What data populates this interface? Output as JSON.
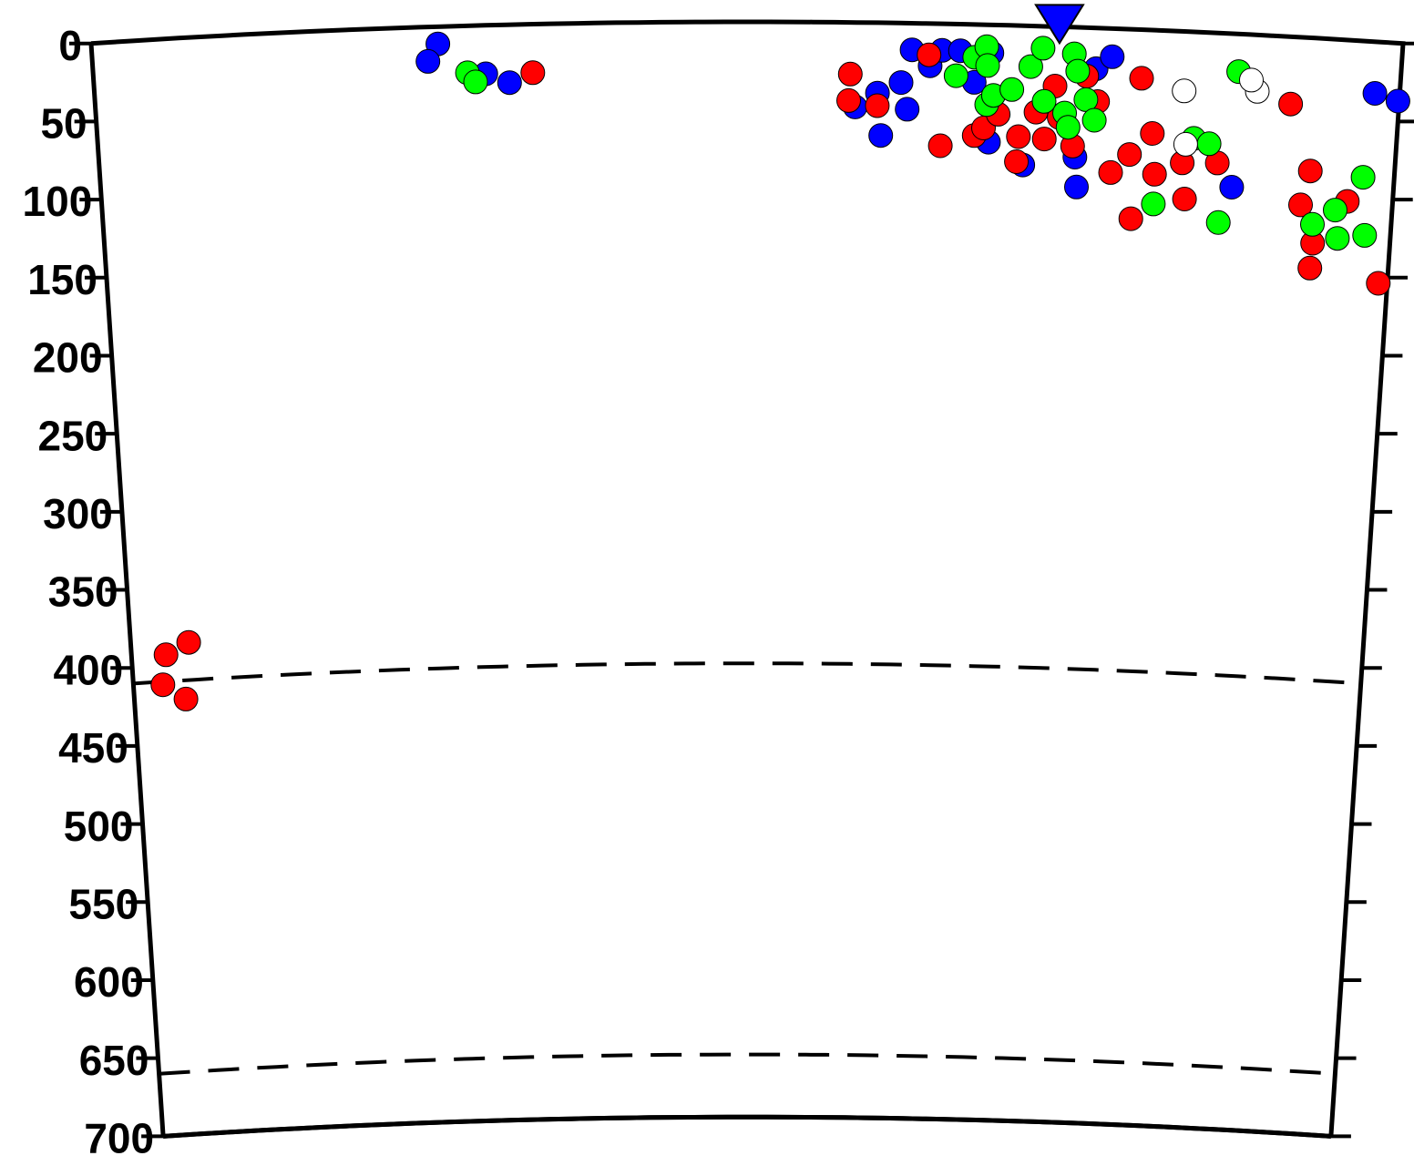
{
  "chart_data": {
    "type": "scatter",
    "xlim": [
      0,
      100
    ],
    "ylim": [
      0,
      700
    ],
    "yticks": [
      0,
      50,
      100,
      150,
      200,
      250,
      300,
      350,
      400,
      450,
      500,
      550,
      600,
      650,
      700
    ],
    "reference_depths": [
      410,
      660
    ],
    "station_x": 73.8,
    "series": [
      {
        "color": "#0000ff",
        "x": [
          26.4,
          25.6,
          30,
          31.8,
          62.6,
          64,
          64.9,
          66.3,
          67.4,
          68.7,
          61.8,
          62.3,
          60,
          60.3,
          58.3,
          68.6,
          71.3,
          75.3,
          75.5,
          76.7,
          77.9,
          98.1,
          99.9,
          87.5
        ],
        "values": [
          11,
          22,
          31,
          37,
          17,
          27,
          17,
          17,
          37,
          18,
          38,
          55,
          45,
          72,
          54,
          75,
          89,
          83,
          102,
          26,
          18,
          33,
          37,
          98
        ]
      },
      {
        "color": "#ff0000",
        "x": [
          33.6,
          57.9,
          57.8,
          60,
          63.9,
          64.9,
          67.5,
          68.2,
          69.3,
          70.8,
          70.9,
          72.2,
          72.9,
          73.6,
          74,
          75.1,
          76,
          76.9,
          78.1,
          79.5,
          79.8,
          80.2,
          81.2,
          81.5,
          83.6,
          83.9,
          86.3,
          91.7,
          93.5,
          92.9,
          96.5,
          94,
          93.9,
          99.3,
          2.8,
          4.7,
          2.4,
          4.2
        ],
        "values": [
          31,
          33,
          50,
          53,
          20,
          78,
          71,
          66,
          57,
          87,
          71,
          55,
          72,
          38,
          58,
          76,
          31,
          47,
          92,
          80,
          121,
          31,
          66,
          92,
          84,
          107,
          83,
          43,
          85,
          107,
          103,
          131,
          147,
          154,
          393,
          386,
          412,
          422
        ]
      },
      {
        "color": "#00ff00",
        "x": [
          28.6,
          29.2,
          66,
          67.4,
          68.3,
          68.4,
          68.4,
          68.9,
          70.3,
          71.7,
          72.6,
          72.8,
          74.4,
          74.7,
          75,
          75.3,
          76,
          76.7,
          81.5,
          84.4,
          85.6,
          86.6,
          87.6,
          93.9,
          95.6,
          95.9,
          97.6,
          98
        ],
        "values": [
          30,
          36,
          33,
          21,
          14,
          26,
          51,
          45,
          41,
          26,
          14,
          48,
          55,
          64,
          17,
          28,
          46,
          59,
          111,
          68,
          71,
          121,
          24,
          119,
          109,
          127,
          87,
          124
        ]
      },
      {
        "color": "#ffffff",
        "x": [
          83.5,
          89.1,
          88.6,
          83.8
        ],
        "values": [
          38,
          36,
          29,
          72
        ]
      }
    ]
  }
}
